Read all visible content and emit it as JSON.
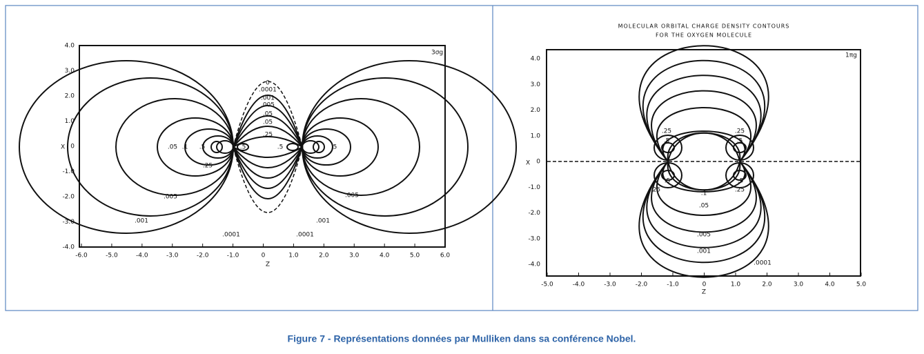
{
  "figure": {
    "caption": "Figure 7 - Représentations données par Mulliken dans sa conférence Nobel."
  },
  "left": {
    "orbital_label": "3σg",
    "x_axis_label": "Z",
    "y_axis_label": "X",
    "xticks": [
      "-6.0",
      "-5.0",
      "-4.0",
      "-3.0",
      "-2.0",
      "-1.0",
      "0",
      "1.0",
      "2.0",
      "3.0",
      "4.0",
      "5.0",
      "6.0"
    ],
    "yticks": [
      "4.0",
      "3.0",
      "2.0",
      "1.0",
      "0",
      "-1.0",
      "-2.0",
      "-3.0",
      "-4.0"
    ],
    "contour_labels": [
      ".0001",
      ".0001",
      ".001",
      ".001",
      ".005",
      ".005",
      ".05",
      ".1",
      ".5",
      ".25",
      ".5",
      ".5",
      ".5",
      ".05",
      "0",
      ".0001",
      ".001",
      ".005",
      ".05",
      ".25"
    ]
  },
  "right": {
    "title": [
      "MOLECULAR ORBITAL CHARGE DENSITY CONTOURS",
      "FOR THE OXYGEN MOLECULE"
    ],
    "orbital_label": "1πg",
    "x_axis_label": "Z",
    "y_axis_label": "X",
    "xticks": [
      "-5.0",
      "-4.0",
      "-3.0",
      "-2.0",
      "-1.0",
      "0",
      "1.0",
      "2.0",
      "3.0",
      "4.0",
      "5.0"
    ],
    "yticks": [
      "4.0",
      "3.0",
      "2.0",
      "1.0",
      "0",
      "-1.0",
      "-2.0",
      "-3.0",
      "-4.0"
    ],
    "contour_labels": [
      ".25",
      ".25",
      ".5",
      ".5",
      ".5",
      ".5",
      ".25",
      ".25",
      ".1",
      ".05",
      ".005",
      ".001",
      ".0001"
    ]
  }
}
